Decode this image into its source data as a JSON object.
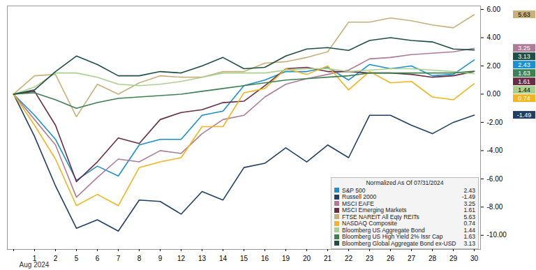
{
  "chart_data": {
    "type": "line",
    "xlabel": "Aug 2024",
    "legend_title": "Normalized As Of 07/31/2024",
    "legend": "bottom-right",
    "grid": false,
    "categories": [
      null,
      "1",
      "2",
      "5",
      "6",
      "7",
      "8",
      "9",
      "12",
      "13",
      "14",
      "15",
      "16",
      "19",
      "20",
      "21",
      "22",
      "23",
      "26",
      "27",
      "28",
      "29",
      "30"
    ],
    "ylim": [
      -11,
      6.25
    ],
    "yticks": [
      {
        "value": 6,
        "label": "6.00"
      },
      {
        "value": 4,
        "label": "4.00"
      },
      {
        "value": 2,
        "label": "2.00"
      },
      {
        "value": 0,
        "label": "0.00"
      },
      {
        "value": -2,
        "label": "-2.00"
      },
      {
        "value": -4,
        "label": "-4.00"
      },
      {
        "value": -6,
        "label": "-6.00"
      },
      {
        "value": -8,
        "label": "-8.00"
      },
      {
        "value": -10,
        "label": "-10.00"
      }
    ],
    "series": [
      {
        "name": "S&P 500",
        "color": "#1a8fd1",
        "values": [
          0,
          -1.5,
          -3.2,
          -6.1,
          -5.1,
          -5.8,
          -3.6,
          -3.2,
          -3.2,
          -1.5,
          -1.2,
          0.6,
          1.0,
          1.6,
          1.6,
          1.9,
          1.0,
          2.1,
          1.8,
          2.0,
          1.3,
          1.4,
          2.43
        ]
      },
      {
        "name": "Russell 2000",
        "color": "#1f3f66",
        "values": [
          0,
          -3.0,
          -6.5,
          -9.5,
          -8.9,
          -9.7,
          -7.5,
          -7.6,
          -8.5,
          -6.9,
          -7.5,
          -5.2,
          -4.9,
          -3.8,
          -4.8,
          -3.6,
          -4.5,
          -1.5,
          -1.5,
          -2.2,
          -2.8,
          -2.0,
          -1.49
        ]
      },
      {
        "name": "MSCI EAFE",
        "color": "#b07b96",
        "values": [
          0,
          -1.8,
          -3.6,
          -7.3,
          -5.9,
          -4.6,
          -4.8,
          -4.0,
          -4.2,
          -2.8,
          -1.8,
          -1.5,
          -0.2,
          0.7,
          1.1,
          1.4,
          1.7,
          2.5,
          2.6,
          2.8,
          2.9,
          3.0,
          3.25
        ]
      },
      {
        "name": "MSCI Emerging Markets",
        "color": "#6a2c43",
        "values": [
          0,
          0.2,
          -2.2,
          -6.2,
          -4.8,
          -3.1,
          -3.5,
          -1.8,
          -1.3,
          -1.1,
          -0.6,
          -0.5,
          0.6,
          1.8,
          1.9,
          1.6,
          1.6,
          1.5,
          1.5,
          1.4,
          1.2,
          1.3,
          1.61
        ]
      },
      {
        "name": "FTSE NAREIT All Eqty REITs",
        "color": "#c7b07a",
        "values": [
          0,
          1.3,
          1.4,
          -1.6,
          0.7,
          0,
          0.8,
          1.3,
          1.2,
          1.2,
          1.6,
          1.6,
          2.2,
          2.3,
          2.6,
          3.0,
          5.1,
          5.1,
          5.4,
          5.2,
          4.9,
          4.7,
          5.63
        ]
      },
      {
        "name": "NASDAQ Composite",
        "color": "#f2b51f",
        "values": [
          0,
          -2.2,
          -4.6,
          -7.9,
          -7.1,
          -7.9,
          -5.2,
          -4.8,
          -4.5,
          -2.3,
          -2.3,
          0.1,
          0.4,
          1.8,
          1.4,
          2.0,
          0.3,
          1.6,
          0.8,
          0.9,
          -0.2,
          -0.4,
          0.74
        ]
      },
      {
        "name": "Bloomberg US Aggregate Bond",
        "color": "#a8d08d",
        "values": [
          0,
          0.5,
          1.5,
          1.5,
          1.2,
          0.7,
          0.6,
          0.7,
          0.9,
          1.2,
          1.5,
          1.5,
          1.5,
          1.7,
          1.8,
          1.8,
          1.6,
          1.7,
          1.8,
          1.8,
          1.7,
          1.6,
          1.44
        ]
      },
      {
        "name": "Bloomberg US High Yield 2% Issr Cap",
        "color": "#3c8150",
        "values": [
          0,
          0.1,
          -0.4,
          -1.0,
          -0.6,
          -0.3,
          -0.2,
          -0.1,
          0,
          0.2,
          0.4,
          0.6,
          0.8,
          1.0,
          1.1,
          1.2,
          1.3,
          1.5,
          1.5,
          1.5,
          1.5,
          1.5,
          1.63
        ]
      },
      {
        "name": "Bloomberg Global Aggregate Bond ex-USD",
        "color": "#1f4e45",
        "values": [
          0,
          0.3,
          1.6,
          2.7,
          2.1,
          1.3,
          1.3,
          1.6,
          1.5,
          2.0,
          2.6,
          1.8,
          1.9,
          2.7,
          3.2,
          3.3,
          3.1,
          3.8,
          4.0,
          3.8,
          3.7,
          3.2,
          3.13
        ]
      }
    ]
  }
}
